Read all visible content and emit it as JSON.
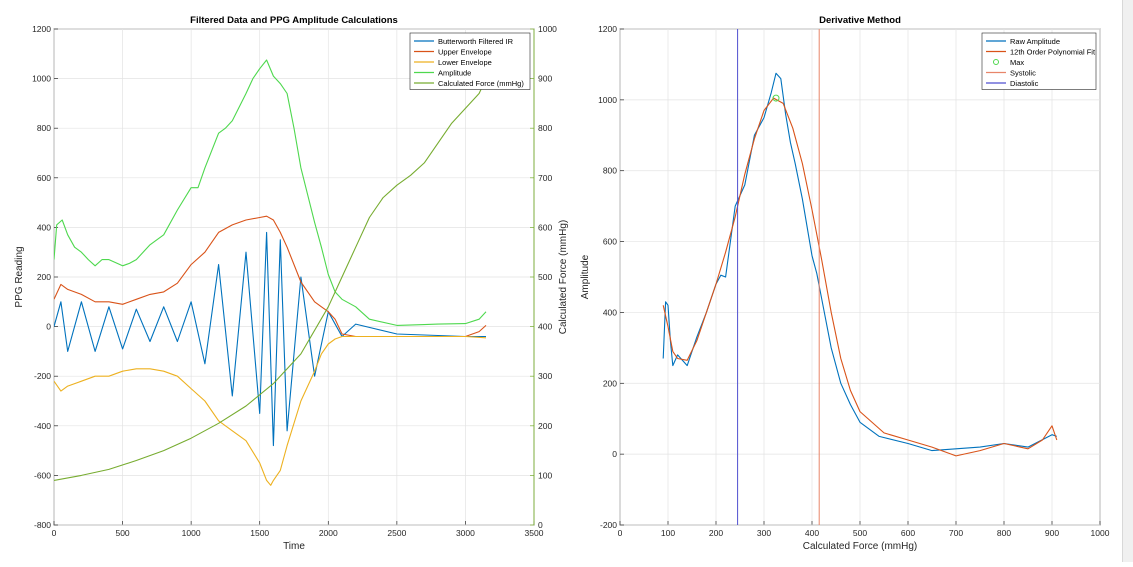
{
  "chart_data": [
    {
      "type": "line",
      "title": "Filtered Data and PPG Amplitude Calculations",
      "xlabel": "Time",
      "ylabel": "PPG Reading",
      "y2label": "Calculated Force (mmHg)",
      "xlim": [
        0,
        3500
      ],
      "ylim": [
        -800,
        1200
      ],
      "y2lim": [
        0,
        1000
      ],
      "xticks": [
        "0",
        "500",
        "1000",
        "1500",
        "2000",
        "2500",
        "3000",
        "3500"
      ],
      "yticks": [
        "-800",
        "-600",
        "-400",
        "-200",
        "0",
        "200",
        "400",
        "600",
        "800",
        "1000",
        "1200"
      ],
      "y2ticks": [
        "0",
        "100",
        "200",
        "300",
        "400",
        "500",
        "600",
        "700",
        "800",
        "900",
        "1000"
      ],
      "grid": true,
      "legend_position": "top-right",
      "colors": {
        "ir": "#0072BD",
        "upper": "#D95319",
        "lower": "#EDB120",
        "amplitude": "#4ED84E",
        "force": "#77AC30"
      },
      "series": [
        {
          "name": "Butterworth Filtered IR",
          "axis": "left",
          "x": [
            0,
            50,
            100,
            200,
            300,
            400,
            500,
            600,
            700,
            800,
            900,
            1000,
            1100,
            1200,
            1300,
            1400,
            1500,
            1550,
            1600,
            1650,
            1700,
            1800,
            1900,
            2000,
            2100,
            2200,
            2500,
            3000,
            3150
          ],
          "y": [
            0,
            100,
            -100,
            100,
            -100,
            80,
            -90,
            70,
            -60,
            80,
            -60,
            100,
            -150,
            250,
            -280,
            300,
            -350,
            380,
            -480,
            350,
            -420,
            200,
            -200,
            60,
            -40,
            10,
            -30,
            -40,
            -40
          ]
        },
        {
          "name": "Upper Envelope",
          "axis": "left",
          "x": [
            0,
            50,
            100,
            200,
            300,
            400,
            500,
            600,
            700,
            800,
            900,
            1000,
            1100,
            1200,
            1300,
            1400,
            1500,
            1550,
            1600,
            1650,
            1700,
            1800,
            1900,
            1950,
            2000,
            2050,
            2100,
            2200,
            2500,
            3000,
            3100,
            3150
          ],
          "y": [
            110,
            170,
            150,
            130,
            100,
            100,
            90,
            110,
            130,
            140,
            175,
            250,
            300,
            380,
            410,
            430,
            440,
            445,
            430,
            380,
            320,
            180,
            100,
            80,
            60,
            30,
            -30,
            -40,
            -40,
            -40,
            -20,
            5
          ]
        },
        {
          "name": "Lower Envelope",
          "axis": "left",
          "x": [
            0,
            50,
            100,
            200,
            300,
            400,
            500,
            600,
            700,
            800,
            900,
            1000,
            1100,
            1200,
            1300,
            1400,
            1500,
            1550,
            1580,
            1600,
            1650,
            1700,
            1800,
            1900,
            1950,
            2000,
            2050,
            2100,
            2200,
            2500,
            3000,
            3150
          ],
          "y": [
            -220,
            -260,
            -240,
            -220,
            -200,
            -200,
            -180,
            -170,
            -170,
            -180,
            -200,
            -250,
            -300,
            -380,
            -420,
            -460,
            -550,
            -620,
            -640,
            -620,
            -580,
            -480,
            -300,
            -180,
            -110,
            -70,
            -50,
            -40,
            -40,
            -40,
            -40,
            -45
          ]
        },
        {
          "name": "Amplitude",
          "axis": "left",
          "x": [
            0,
            20,
            60,
            100,
            150,
            200,
            250,
            300,
            350,
            400,
            500,
            550,
            600,
            700,
            800,
            900,
            1000,
            1050,
            1100,
            1200,
            1250,
            1300,
            1400,
            1450,
            1500,
            1550,
            1600,
            1650,
            1700,
            1750,
            1800,
            1900,
            1950,
            2000,
            2050,
            2100,
            2200,
            2300,
            2500,
            2700,
            2800,
            3000,
            3100,
            3150
          ],
          "y": [
            270,
            410,
            430,
            370,
            320,
            300,
            270,
            245,
            270,
            270,
            245,
            255,
            270,
            330,
            370,
            470,
            560,
            560,
            640,
            780,
            800,
            830,
            940,
            1000,
            1040,
            1075,
            1010,
            980,
            940,
            800,
            640,
            420,
            320,
            210,
            140,
            110,
            80,
            30,
            5,
            8,
            10,
            12,
            30,
            60
          ]
        },
        {
          "name": "Calculated Force (mmHg)",
          "axis": "right",
          "x": [
            0,
            200,
            400,
            600,
            800,
            1000,
            1200,
            1400,
            1600,
            1800,
            2000,
            2100,
            2200,
            2300,
            2400,
            2500,
            2600,
            2700,
            2800,
            2900,
            3000,
            3100,
            3150
          ],
          "y": [
            90,
            100,
            112,
            130,
            150,
            175,
            205,
            240,
            285,
            345,
            440,
            500,
            560,
            620,
            660,
            685,
            705,
            730,
            770,
            810,
            840,
            870,
            900
          ]
        }
      ]
    },
    {
      "type": "line",
      "title": "Derivative Method",
      "xlabel": "Calculated Force (mmHg)",
      "ylabel": "Amplitude",
      "xlim": [
        0,
        1000
      ],
      "ylim": [
        -200,
        1200
      ],
      "xticks": [
        "0",
        "100",
        "200",
        "300",
        "400",
        "500",
        "600",
        "700",
        "800",
        "900",
        "1000"
      ],
      "yticks": [
        "-200",
        "0",
        "200",
        "400",
        "600",
        "800",
        "1000",
        "1200"
      ],
      "grid": true,
      "legend_position": "top-right",
      "colors": {
        "raw": "#0072BD",
        "fit": "#D95319",
        "max": "#4ED84E",
        "systolic": "#E8856A",
        "diastolic": "#4F4FD0"
      },
      "series": [
        {
          "name": "Raw Amplitude",
          "x": [
            90,
            95,
            100,
            105,
            110,
            120,
            140,
            160,
            180,
            200,
            210,
            220,
            230,
            240,
            260,
            280,
            300,
            315,
            325,
            335,
            345,
            355,
            365,
            380,
            400,
            410,
            420,
            440,
            460,
            480,
            500,
            540,
            600,
            650,
            700,
            750,
            800,
            850,
            900,
            910
          ],
          "y": [
            270,
            430,
            420,
            320,
            250,
            280,
            250,
            330,
            400,
            480,
            505,
            500,
            600,
            700,
            760,
            900,
            950,
            1020,
            1075,
            1060,
            960,
            880,
            820,
            720,
            560,
            510,
            440,
            300,
            200,
            140,
            90,
            50,
            30,
            10,
            15,
            20,
            30,
            20,
            55,
            50
          ]
        },
        {
          "name": "12th Order Polynomial Fit",
          "x": [
            90,
            100,
            110,
            120,
            140,
            160,
            180,
            200,
            220,
            240,
            260,
            280,
            300,
            320,
            340,
            360,
            380,
            400,
            420,
            440,
            460,
            480,
            500,
            550,
            600,
            650,
            700,
            750,
            800,
            850,
            880,
            900,
            910
          ],
          "y": [
            420,
            360,
            290,
            270,
            265,
            320,
            400,
            480,
            570,
            670,
            790,
            890,
            970,
            1005,
            990,
            920,
            820,
            690,
            550,
            400,
            270,
            180,
            120,
            60,
            40,
            20,
            -5,
            10,
            30,
            15,
            40,
            80,
            40
          ]
        },
        {
          "name": "Max",
          "marker": "circle",
          "x": [
            325
          ],
          "y": [
            1005
          ]
        },
        {
          "name": "Systolic",
          "vline": 415
        },
        {
          "name": "Diastolic",
          "vline": 245
        }
      ]
    }
  ]
}
